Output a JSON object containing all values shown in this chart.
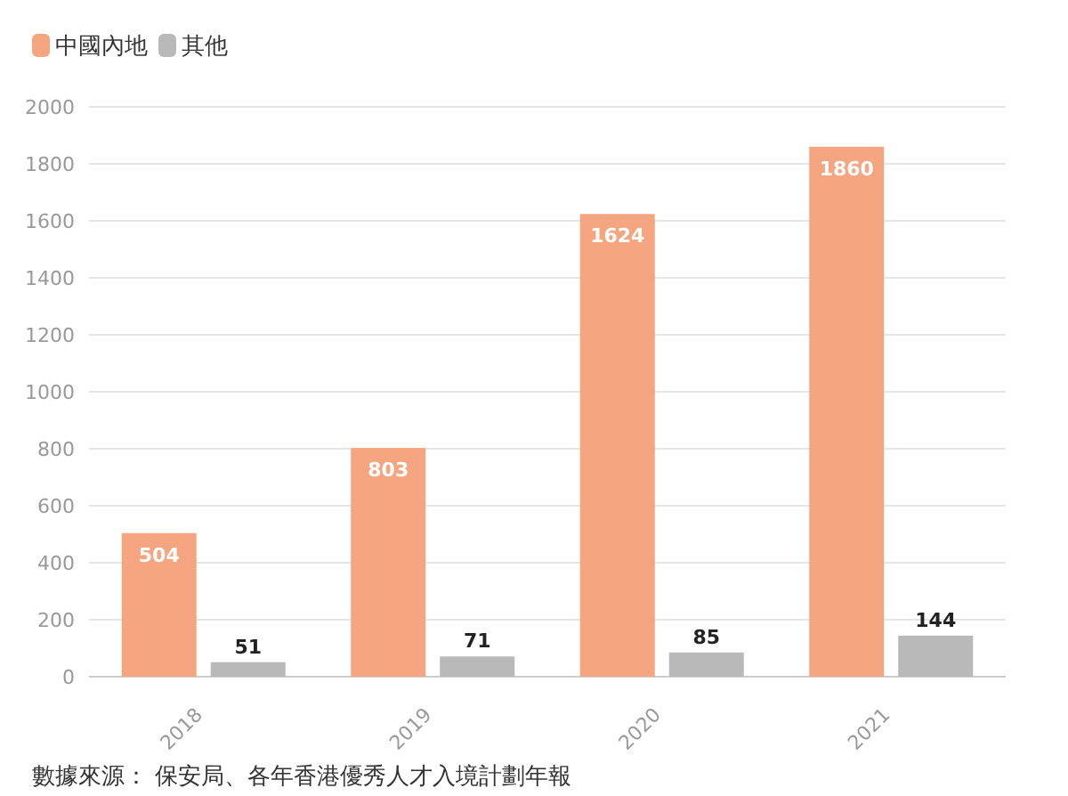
{
  "chart_data": {
    "type": "bar",
    "categories": [
      "2018",
      "2019",
      "2020",
      "2021"
    ],
    "series": [
      {
        "name": "中國內地",
        "color": "#f6a581",
        "values": [
          504,
          803,
          1624,
          1860
        ]
      },
      {
        "name": "其他",
        "color": "#b9b9b9",
        "values": [
          51,
          71,
          85,
          144
        ]
      }
    ],
    "ylim": [
      0,
      2000
    ],
    "yticks": [
      0,
      200,
      400,
      600,
      800,
      1000,
      1200,
      1400,
      1600,
      1800,
      2000
    ],
    "grid": "y",
    "legend": "top left",
    "data_labels": true,
    "annotations": [
      "數據來源： 保安局、各年香港優秀人才入境計劃年報"
    ]
  }
}
